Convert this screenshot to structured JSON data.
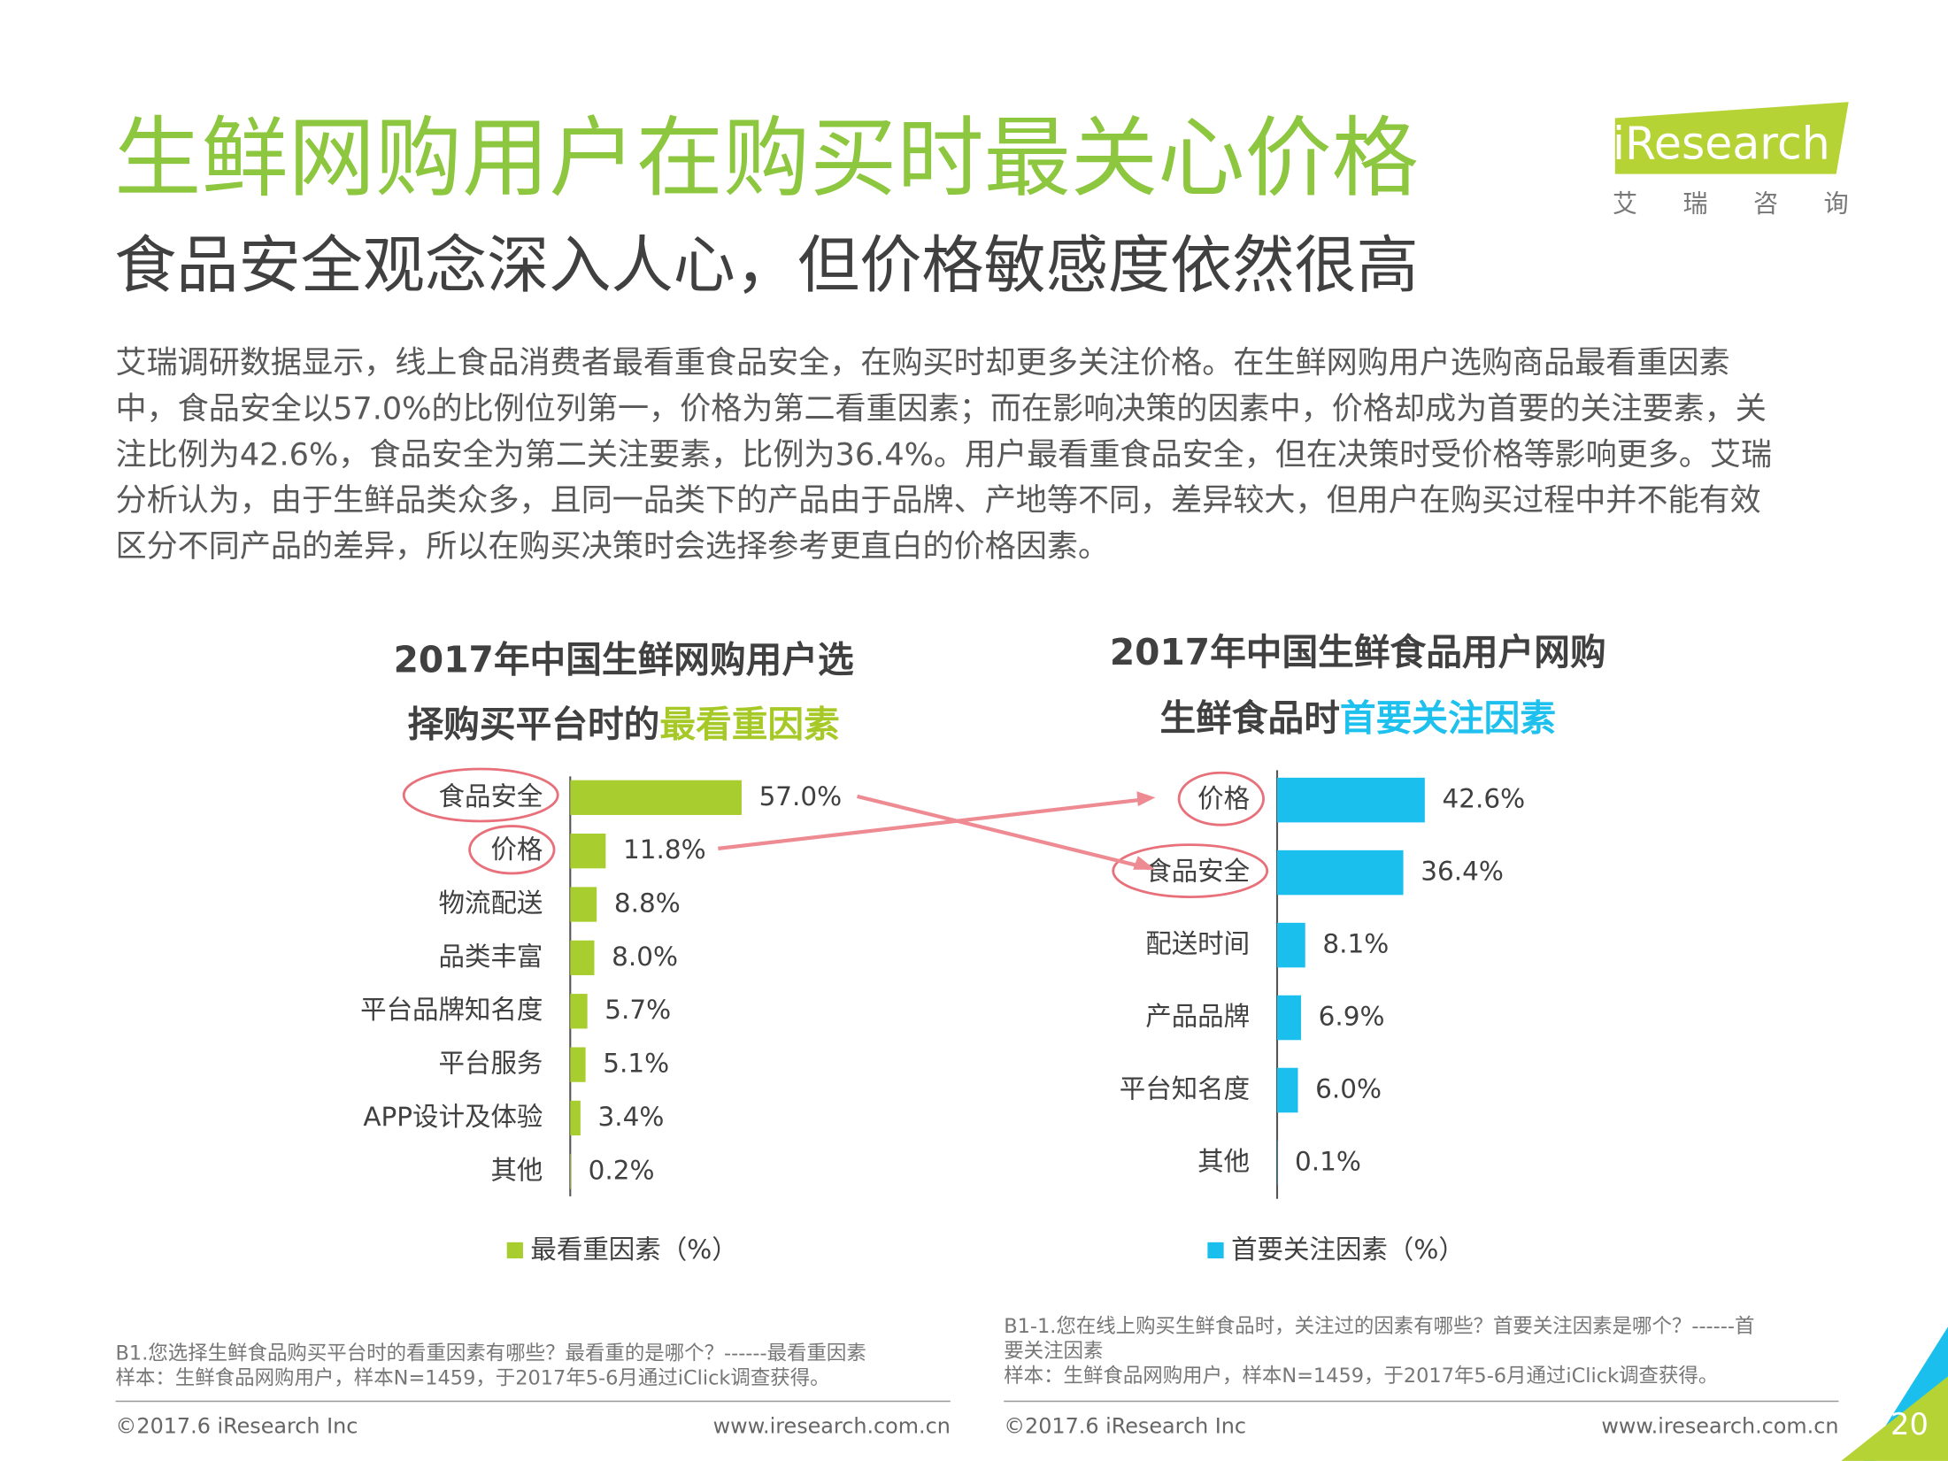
{
  "header": {
    "title": "生鲜网购用户在购买时最关心价格",
    "subtitle": "食品安全观念深入人心，但价格敏感度依然很高",
    "logo": "iResearch",
    "logo_cn": "艾 瑞 咨 询"
  },
  "paragraph": [
    "艾瑞调研数据显示，线上食品消费者最看重食品安全，在购买时却更多关注价格。在生鲜网购用户选购商品最看重因素",
    "中，食品安全以57.0%的比例位列第一，价格为第二看重因素；而在影响决策的因素中，价格却成为首要的关注要素，关",
    "注比例为42.6%，食品安全为第二关注要素，比例为36.4%。用户最看重食品安全，但在决策时受价格等影响更多。艾瑞",
    "分析认为，由于生鲜品类众多，且同一品类下的产品由于品牌、产地等不同，差异较大，但用户在购买过程中并不能有效",
    "区分不同产品的差异，所以在购买决策时会选择参考更直白的价格因素。"
  ],
  "chart_data": [
    {
      "type": "bar",
      "orientation": "horizontal",
      "title_lines": [
        [
          "2017年中国生鲜网购用户选"
        ],
        [
          "择购买平台时的",
          "最看重因素"
        ]
      ],
      "categories": [
        "食品安全",
        "价格",
        "物流配送",
        "品类丰富",
        "平台品牌知名度",
        "平台服务",
        "APP设计及体验",
        "其他"
      ],
      "series": [
        {
          "name": "最看重因素（%）",
          "color": "#a8cd2e",
          "values": [
            57.0,
            11.8,
            8.8,
            8.0,
            5.7,
            5.1,
            3.4,
            0.2
          ],
          "value_labels": [
            "57.0%",
            "11.8%",
            "8.8%",
            "8.0%",
            "5.7%",
            "5.1%",
            "3.4%",
            "0.2%"
          ]
        }
      ],
      "highlight_color": "#a6c927"
    },
    {
      "type": "bar",
      "orientation": "horizontal",
      "title_lines": [
        [
          "2017年中国生鲜食品用户网购"
        ],
        [
          "生鲜食品时",
          "首要关注因素"
        ]
      ],
      "categories": [
        "价格",
        "食品安全",
        "配送时间",
        "产品品牌",
        "平台知名度",
        "其他"
      ],
      "series": [
        {
          "name": "首要关注因素（%）",
          "color": "#1bbfee",
          "values": [
            42.6,
            36.4,
            8.1,
            6.9,
            6.0,
            0.1
          ],
          "value_labels": [
            "42.6%",
            "36.4%",
            "8.1%",
            "6.9%",
            "6.0%",
            "0.1%"
          ]
        }
      ],
      "highlight_color": "#1ec0ee"
    }
  ],
  "notes": [
    [
      "B1.您选择生鲜食品购买平台时的看重因素有哪些？最看重的是哪个？------最看重因素",
      "样本：生鲜食品网购用户，样本N=1459，于2017年5-6月通过iClick调查获得。"
    ],
    [
      "B1-1.您在线上购买生鲜食品时，关注过的因素有哪些？首要关注因素是哪个？------首",
      "要关注因素",
      "样本：生鲜食品网购用户，样本N=1459，于2017年5-6月通过iClick调查获得。"
    ]
  ],
  "footer": {
    "copyright": "©2017.6 iResearch Inc",
    "url": "www.iresearch.com.cn",
    "copyright2": "©2017.6 iResearch Inc",
    "url2": "www.iresearch.com.cn",
    "page": "20"
  }
}
